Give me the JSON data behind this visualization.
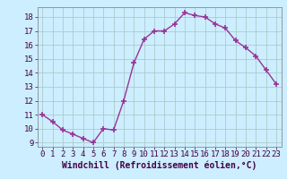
{
  "x": [
    0,
    1,
    2,
    3,
    4,
    5,
    6,
    7,
    8,
    9,
    10,
    11,
    12,
    13,
    14,
    15,
    16,
    17,
    18,
    19,
    20,
    21,
    22,
    23
  ],
  "y": [
    11.0,
    10.5,
    9.9,
    9.6,
    9.3,
    9.0,
    10.0,
    9.9,
    12.0,
    14.7,
    16.4,
    17.0,
    17.0,
    17.5,
    18.3,
    18.1,
    18.0,
    17.5,
    17.2,
    16.3,
    15.8,
    15.2,
    14.2,
    13.2
  ],
  "line_color": "#993399",
  "marker": "+",
  "bg_color": "#cceeff",
  "grid_color": "#aacccc",
  "xlabel": "Windchill (Refroidissement éolien,°C)",
  "ylim": [
    8.7,
    18.7
  ],
  "xlim": [
    -0.5,
    23.5
  ],
  "yticks": [
    9,
    10,
    11,
    12,
    13,
    14,
    15,
    16,
    17,
    18
  ],
  "xticks": [
    0,
    1,
    2,
    3,
    4,
    5,
    6,
    7,
    8,
    9,
    10,
    11,
    12,
    13,
    14,
    15,
    16,
    17,
    18,
    19,
    20,
    21,
    22,
    23
  ],
  "xlabel_fontsize": 7,
  "tick_fontsize": 6.5,
  "line_width": 1.0,
  "marker_size": 4
}
